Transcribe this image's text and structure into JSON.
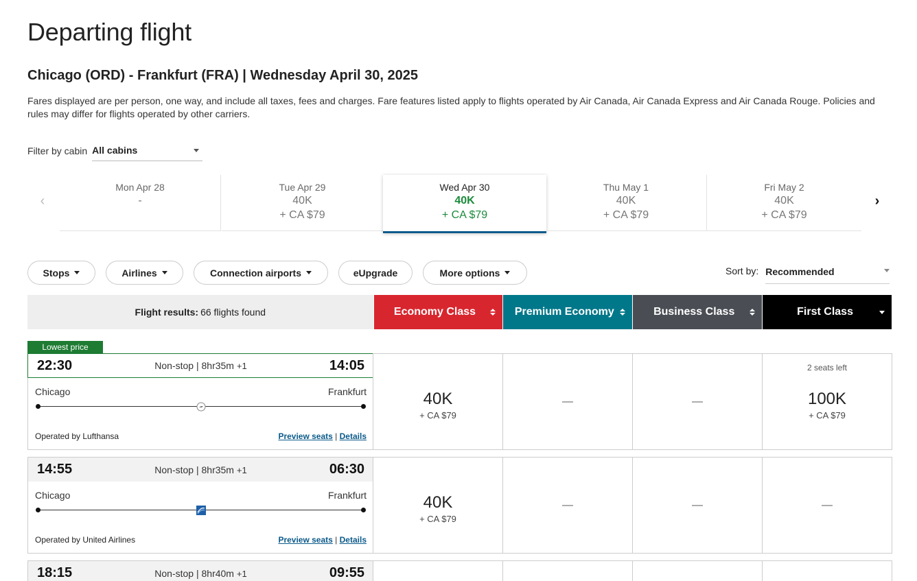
{
  "page": {
    "title": "Departing flight",
    "route": "Chicago (ORD) - Frankfurt (FRA)  |  Wednesday April 30, 2025",
    "disclaimer": "Fares displayed are per person, one way, and include all taxes, fees and charges. Fare features listed apply to flights operated by Air Canada, Air Canada Express and Air Canada Rouge. Policies and rules may differ for flights operated by other carriers."
  },
  "cabin_filter": {
    "label": "Filter by cabin",
    "value": "All cabins"
  },
  "dates": [
    {
      "day": "Mon Apr 28",
      "points": "-",
      "tax": ""
    },
    {
      "day": "Tue Apr 29",
      "points": "40K",
      "tax": "+ CA $79"
    },
    {
      "day": "Wed Apr 30",
      "points": "40K",
      "tax": "+ CA $79",
      "active": true
    },
    {
      "day": "Thu May 1",
      "points": "40K",
      "tax": "+ CA $79"
    },
    {
      "day": "Fri May 2",
      "points": "40K",
      "tax": "+ CA $79"
    }
  ],
  "filters": {
    "stops": "Stops",
    "airlines": "Airlines",
    "connection": "Connection airports",
    "eupgrade": "eUpgrade",
    "more": "More options"
  },
  "sort": {
    "label": "Sort by:",
    "value": "Recommended"
  },
  "results": {
    "label": "Flight results:",
    "count": "66 flights found"
  },
  "cabins": [
    {
      "name": "Economy Class",
      "color": "#d8262f"
    },
    {
      "name": "Premium Economy",
      "color": "#00788a"
    },
    {
      "name": "Business Class",
      "color": "#4a4e54"
    },
    {
      "name": "First Class",
      "color": "#000000"
    }
  ],
  "badge": "Lowest price",
  "flights": [
    {
      "depart": "22:30",
      "arrive": "14:05",
      "summary": "Non-stop | 8hr35m",
      "day_offset": "+1",
      "from": "Chicago",
      "to": "Frankfurt",
      "operator": "Operated by Lufthansa",
      "preview": "Preview seats",
      "details": "Details",
      "separator": "|",
      "airline_icon": "lufthansa-icon",
      "fares": [
        {
          "points": "40K",
          "tax": "+ CA $79"
        },
        {
          "dash": "—"
        },
        {
          "dash": "—"
        },
        {
          "seats": "2 seats left",
          "points": "100K",
          "tax": "+ CA $79"
        }
      ]
    },
    {
      "depart": "14:55",
      "arrive": "06:30",
      "summary": "Non-stop | 8hr35m",
      "day_offset": "+1",
      "from": "Chicago",
      "to": "Frankfurt",
      "operator": "Operated by United Airlines",
      "preview": "Preview seats",
      "details": "Details",
      "separator": "|",
      "airline_icon": "united-icon",
      "fares": [
        {
          "points": "40K",
          "tax": "+ CA $79"
        },
        {
          "dash": "—"
        },
        {
          "dash": "—"
        },
        {
          "dash": "—"
        }
      ]
    },
    {
      "depart": "18:15",
      "arrive": "09:55",
      "summary": "Non-stop | 8hr40m",
      "day_offset": "+1"
    }
  ]
}
